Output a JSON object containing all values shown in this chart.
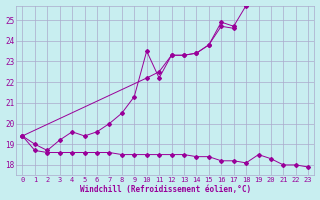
{
  "xlabel": "Windchill (Refroidissement éolien,°C)",
  "background_color": "#c8eef0",
  "grid_color": "#aaaacc",
  "line_color": "#990099",
  "x_values": [
    0,
    1,
    2,
    3,
    4,
    5,
    6,
    7,
    8,
    9,
    10,
    11,
    12,
    13,
    14,
    15,
    16,
    17,
    18,
    19,
    20,
    21,
    22,
    23
  ],
  "series1": [
    19.4,
    19.0,
    18.7,
    19.2,
    19.6,
    19.4,
    19.6,
    20.0,
    20.5,
    21.3,
    23.5,
    22.2,
    23.3,
    23.3,
    23.4,
    23.8,
    24.7,
    24.6,
    null,
    null,
    null,
    null,
    null,
    null
  ],
  "series2": [
    19.4,
    18.7,
    18.6,
    18.6,
    18.6,
    18.6,
    18.6,
    18.6,
    18.5,
    18.5,
    18.5,
    18.5,
    18.5,
    18.5,
    18.4,
    18.4,
    18.2,
    18.2,
    18.1,
    18.5,
    18.3,
    18.0,
    18.0,
    17.9
  ],
  "series3": [
    19.4,
    null,
    null,
    null,
    null,
    null,
    null,
    null,
    null,
    null,
    22.2,
    22.5,
    23.3,
    23.3,
    23.4,
    23.8,
    24.9,
    24.7,
    25.7,
    null,
    null,
    null,
    null,
    null
  ],
  "ylim": [
    17.5,
    25.7
  ],
  "xlim": [
    -0.5,
    23.5
  ],
  "yticks": [
    18,
    19,
    20,
    21,
    22,
    23,
    24,
    25
  ],
  "xticks": [
    0,
    1,
    2,
    3,
    4,
    5,
    6,
    7,
    8,
    9,
    10,
    11,
    12,
    13,
    14,
    15,
    16,
    17,
    18,
    19,
    20,
    21,
    22,
    23
  ]
}
